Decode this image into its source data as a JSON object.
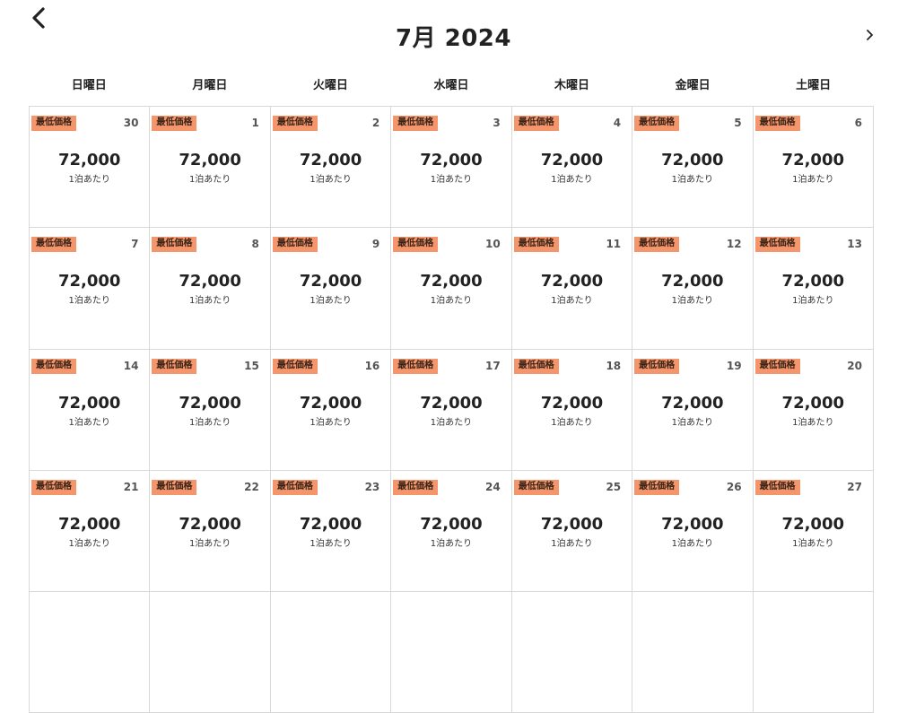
{
  "header": {
    "title": "7月 2024",
    "prev_icon": "chevron-left-icon",
    "next_icon": "chevron-right-icon"
  },
  "weekdays": [
    "日曜日",
    "月曜日",
    "火曜日",
    "水曜日",
    "木曜日",
    "金曜日",
    "土曜日"
  ],
  "colors": {
    "badge": "#f5956b",
    "grid_line": "#d9d9d9"
  },
  "cells": [
    {
      "day": "30",
      "badge": "最低価格",
      "price": "72,000",
      "unit": "1泊あたり"
    },
    {
      "day": "1",
      "badge": "最低価格",
      "price": "72,000",
      "unit": "1泊あたり"
    },
    {
      "day": "2",
      "badge": "最低価格",
      "price": "72,000",
      "unit": "1泊あたり"
    },
    {
      "day": "3",
      "badge": "最低価格",
      "price": "72,000",
      "unit": "1泊あたり"
    },
    {
      "day": "4",
      "badge": "最低価格",
      "price": "72,000",
      "unit": "1泊あたり"
    },
    {
      "day": "5",
      "badge": "最低価格",
      "price": "72,000",
      "unit": "1泊あたり"
    },
    {
      "day": "6",
      "badge": "最低価格",
      "price": "72,000",
      "unit": "1泊あたり"
    },
    {
      "day": "7",
      "badge": "最低価格",
      "price": "72,000",
      "unit": "1泊あたり"
    },
    {
      "day": "8",
      "badge": "最低価格",
      "price": "72,000",
      "unit": "1泊あたり"
    },
    {
      "day": "9",
      "badge": "最低価格",
      "price": "72,000",
      "unit": "1泊あたり"
    },
    {
      "day": "10",
      "badge": "最低価格",
      "price": "72,000",
      "unit": "1泊あたり"
    },
    {
      "day": "11",
      "badge": "最低価格",
      "price": "72,000",
      "unit": "1泊あたり"
    },
    {
      "day": "12",
      "badge": "最低価格",
      "price": "72,000",
      "unit": "1泊あたり"
    },
    {
      "day": "13",
      "badge": "最低価格",
      "price": "72,000",
      "unit": "1泊あたり"
    },
    {
      "day": "14",
      "badge": "最低価格",
      "price": "72,000",
      "unit": "1泊あたり"
    },
    {
      "day": "15",
      "badge": "最低価格",
      "price": "72,000",
      "unit": "1泊あたり"
    },
    {
      "day": "16",
      "badge": "最低価格",
      "price": "72,000",
      "unit": "1泊あたり"
    },
    {
      "day": "17",
      "badge": "最低価格",
      "price": "72,000",
      "unit": "1泊あたり"
    },
    {
      "day": "18",
      "badge": "最低価格",
      "price": "72,000",
      "unit": "1泊あたり"
    },
    {
      "day": "19",
      "badge": "最低価格",
      "price": "72,000",
      "unit": "1泊あたり"
    },
    {
      "day": "20",
      "badge": "最低価格",
      "price": "72,000",
      "unit": "1泊あたり"
    },
    {
      "day": "21",
      "badge": "最低価格",
      "price": "72,000",
      "unit": "1泊あたり"
    },
    {
      "day": "22",
      "badge": "最低価格",
      "price": "72,000",
      "unit": "1泊あたり"
    },
    {
      "day": "23",
      "badge": "最低価格",
      "price": "72,000",
      "unit": "1泊あたり"
    },
    {
      "day": "24",
      "badge": "最低価格",
      "price": "72,000",
      "unit": "1泊あたり"
    },
    {
      "day": "25",
      "badge": "最低価格",
      "price": "72,000",
      "unit": "1泊あたり"
    },
    {
      "day": "26",
      "badge": "最低価格",
      "price": "72,000",
      "unit": "1泊あたり"
    },
    {
      "day": "27",
      "badge": "最低価格",
      "price": "72,000",
      "unit": "1泊あたり"
    },
    {
      "day": "",
      "badge": "",
      "price": "",
      "unit": ""
    },
    {
      "day": "",
      "badge": "",
      "price": "",
      "unit": ""
    },
    {
      "day": "",
      "badge": "",
      "price": "",
      "unit": ""
    },
    {
      "day": "",
      "badge": "",
      "price": "",
      "unit": ""
    },
    {
      "day": "",
      "badge": "",
      "price": "",
      "unit": ""
    },
    {
      "day": "",
      "badge": "",
      "price": "",
      "unit": ""
    },
    {
      "day": "",
      "badge": "",
      "price": "",
      "unit": ""
    }
  ]
}
